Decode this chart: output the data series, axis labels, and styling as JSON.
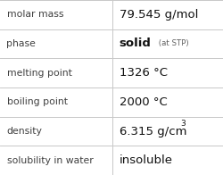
{
  "rows": [
    {
      "label": "molar mass",
      "value": "79.545 g/mol",
      "special": null
    },
    {
      "label": "phase",
      "value": "solid",
      "special": "phase"
    },
    {
      "label": "melting point",
      "value": "1326 °C",
      "special": null
    },
    {
      "label": "boiling point",
      "value": "2000 °C",
      "special": null
    },
    {
      "label": "density",
      "value": "6.315 g/cm",
      "special": "density"
    },
    {
      "label": "solubility in water",
      "value": "insoluble",
      "special": null
    }
  ],
  "bg_color": "#ffffff",
  "grid_color": "#c8c8c8",
  "label_color": "#404040",
  "value_color": "#111111",
  "label_fontsize": 7.8,
  "value_fontsize": 9.5,
  "col_split": 0.505
}
